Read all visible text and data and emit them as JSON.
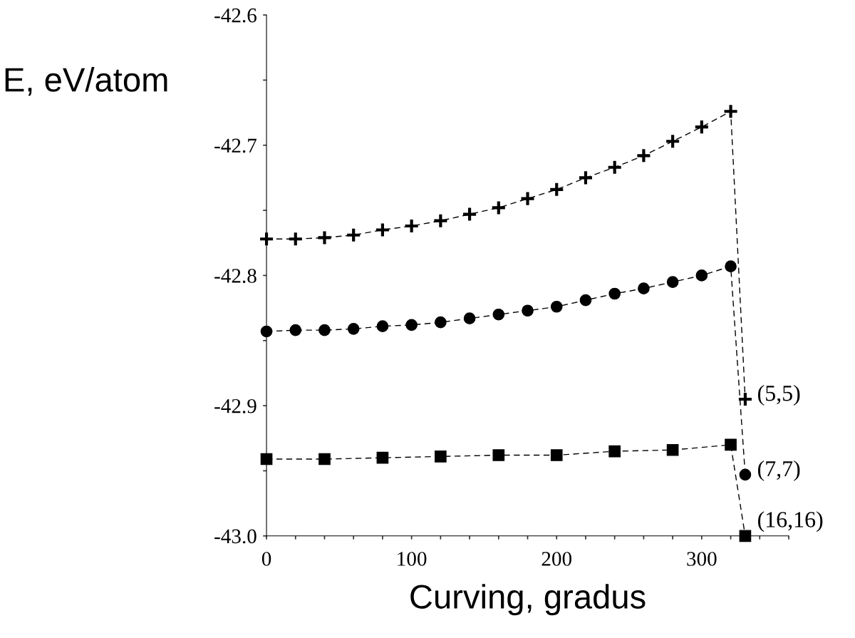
{
  "chart_data": {
    "type": "line",
    "xlabel": "Curving, gradus",
    "ylabel": "E, eV/atom",
    "xlim": [
      0,
      360
    ],
    "ylim": [
      -43.0,
      -42.6
    ],
    "xticks": [
      0,
      {
        "value": 20,
        "label": null
      },
      {
        "value": 40,
        "label": null
      },
      {
        "value": 60,
        "label": null
      },
      {
        "value": 80,
        "label": null
      },
      100,
      {
        "value": 120,
        "label": null
      },
      {
        "value": 140,
        "label": null
      },
      {
        "value": 160,
        "label": null
      },
      {
        "value": 180,
        "label": null
      },
      200,
      {
        "value": 220,
        "label": null
      },
      {
        "value": 240,
        "label": null
      },
      {
        "value": 260,
        "label": null
      },
      {
        "value": 280,
        "label": null
      },
      300,
      {
        "value": 320,
        "label": null
      },
      {
        "value": 340,
        "label": null
      },
      {
        "value": 360,
        "label": null
      }
    ],
    "yticks": [
      {
        "value": -43.0,
        "label": "-43.0"
      },
      {
        "value": -42.95,
        "label": null
      },
      -42.9,
      {
        "value": -42.85,
        "label": null
      },
      -42.8,
      {
        "value": -42.75,
        "label": null
      },
      -42.7,
      {
        "value": -42.65,
        "label": null
      },
      -42.6
    ],
    "grid": false,
    "legend": false,
    "line_style": "dashed",
    "series": [
      {
        "name": "(5,5)",
        "color": "#000000",
        "marker": "cross",
        "x": [
          0,
          20,
          40,
          60,
          80,
          100,
          120,
          140,
          160,
          180,
          200,
          220,
          240,
          260,
          280,
          300,
          320,
          330
        ],
        "values": [
          -42.772,
          -42.772,
          -42.771,
          -42.769,
          -42.765,
          -42.762,
          -42.758,
          -42.753,
          -42.748,
          -42.741,
          -42.734,
          -42.725,
          -42.717,
          -42.708,
          -42.697,
          -42.686,
          -42.674,
          -42.895
        ]
      },
      {
        "name": "(7,7)",
        "color": "#000000",
        "marker": "circle",
        "x": [
          0,
          20,
          40,
          60,
          80,
          100,
          120,
          140,
          160,
          180,
          200,
          220,
          240,
          260,
          280,
          300,
          320,
          330
        ],
        "values": [
          -42.843,
          -42.842,
          -42.842,
          -42.841,
          -42.839,
          -42.838,
          -42.836,
          -42.833,
          -42.83,
          -42.827,
          -42.824,
          -42.819,
          -42.814,
          -42.81,
          -42.805,
          -42.8,
          -42.793,
          -42.953
        ]
      },
      {
        "name": "(16,16)",
        "color": "#000000",
        "marker": "square",
        "x": [
          0,
          40,
          80,
          120,
          160,
          200,
          240,
          280,
          320,
          330
        ],
        "values": [
          -42.941,
          -42.941,
          -42.94,
          -42.939,
          -42.938,
          -42.938,
          -42.935,
          -42.934,
          -42.93,
          -43.0
        ]
      }
    ]
  }
}
